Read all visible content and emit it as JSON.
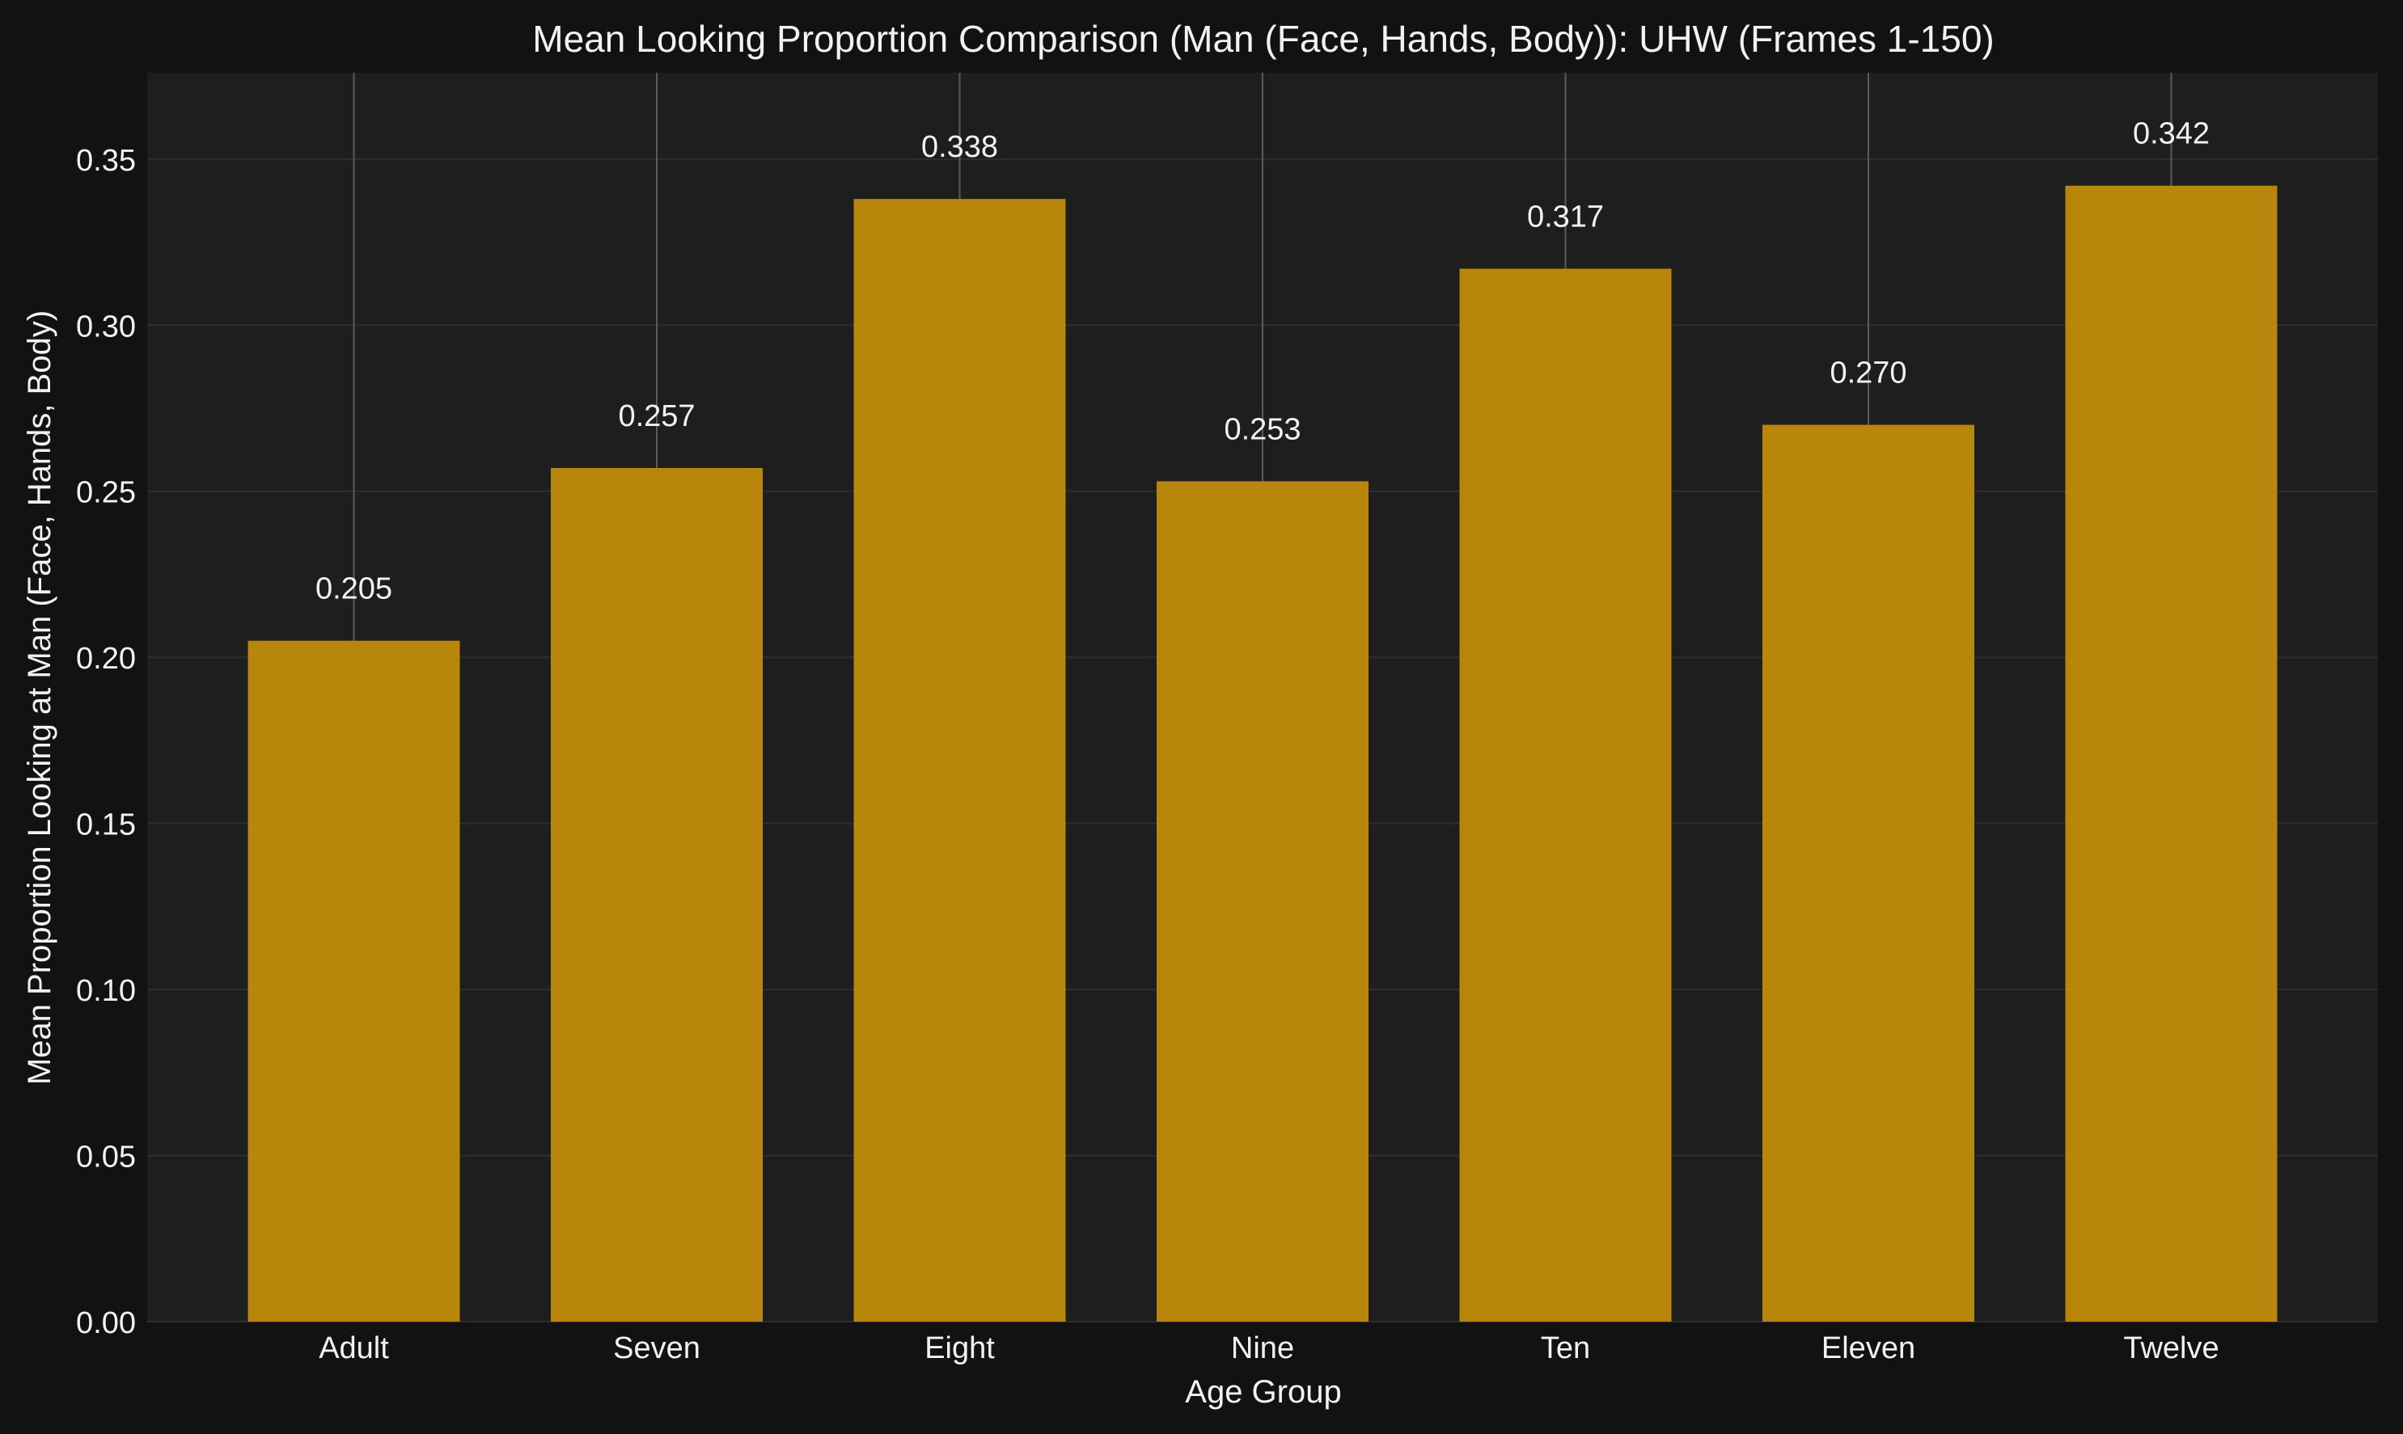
{
  "colors": {
    "page_background": "#121212",
    "plot_background": "#1e1e1e",
    "bar": "#b8860b",
    "text": "#f2f2f2",
    "grid_y": "#2e2e2e",
    "grid_x": "#5a5a5a"
  },
  "chart_data": {
    "type": "bar",
    "title": "Mean Looking Proportion Comparison (Man (Face, Hands, Body)): UHW (Frames 1-150)",
    "xlabel": "Age Group",
    "ylabel": "Mean Proportion Looking at Man (Face, Hands, Body)",
    "categories": [
      "Adult",
      "Seven",
      "Eight",
      "Nine",
      "Ten",
      "Eleven",
      "Twelve"
    ],
    "values": [
      0.205,
      0.257,
      0.338,
      0.253,
      0.317,
      0.27,
      0.342
    ],
    "value_labels": [
      "0.205",
      "0.257",
      "0.338",
      "0.253",
      "0.317",
      "0.270",
      "0.342"
    ],
    "ylim": [
      0,
      0.376
    ],
    "yticks": [
      0.0,
      0.05,
      0.1,
      0.15,
      0.2,
      0.25,
      0.3,
      0.35
    ],
    "ytick_labels": [
      "0.00",
      "0.05",
      "0.10",
      "0.15",
      "0.20",
      "0.25",
      "0.30",
      "0.35"
    ],
    "grid": true,
    "legend": "none"
  }
}
